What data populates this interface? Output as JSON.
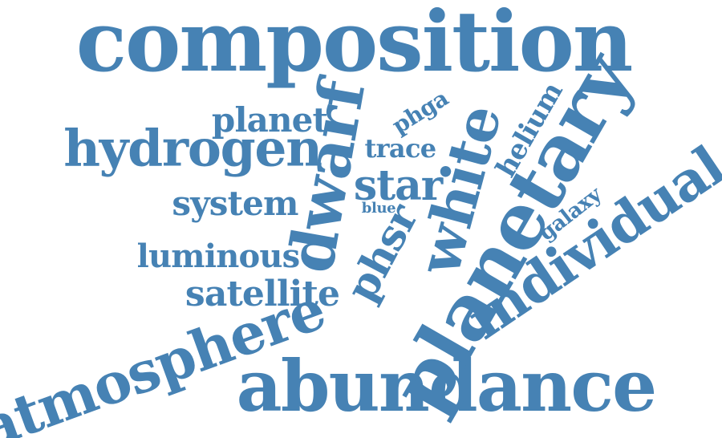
{
  "theme": {
    "word_color": "#4682b4",
    "background": "#ffffff"
  },
  "words": [
    {
      "id": "composition",
      "text": "composition"
    },
    {
      "id": "abundance",
      "text": "abundance"
    },
    {
      "id": "planetary",
      "text": "planetary"
    },
    {
      "id": "atmosphere",
      "text": "atmosphere"
    },
    {
      "id": "individual",
      "text": "individual"
    },
    {
      "id": "hydrogen",
      "text": "hydrogen"
    },
    {
      "id": "dwarf",
      "text": "dwarf"
    },
    {
      "id": "white",
      "text": "white"
    },
    {
      "id": "satellite",
      "text": "satellite"
    },
    {
      "id": "star",
      "text": "star"
    },
    {
      "id": "system",
      "text": "system"
    },
    {
      "id": "phsr",
      "text": "phsr"
    },
    {
      "id": "luminous",
      "text": "luminous"
    },
    {
      "id": "planet",
      "text": "planet"
    },
    {
      "id": "helium",
      "text": "helium"
    },
    {
      "id": "trace",
      "text": "trace"
    },
    {
      "id": "phga",
      "text": "phga"
    },
    {
      "id": "galaxy",
      "text": "galaxy"
    },
    {
      "id": "blue",
      "text": "blue"
    }
  ]
}
